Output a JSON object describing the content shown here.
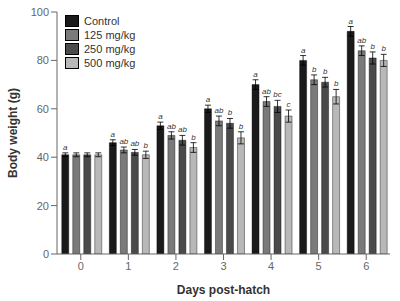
{
  "chart_data": {
    "type": "bar",
    "categories": [
      "0",
      "1",
      "2",
      "3",
      "4",
      "5",
      "6"
    ],
    "xlabel": "Days post-hatch",
    "ylabel": "Body weight (g)",
    "ylim": [
      0,
      100
    ],
    "yticks": [
      0,
      20,
      40,
      60,
      80,
      100
    ],
    "grid": false,
    "legend": "upper left",
    "series": [
      {
        "name": "Control",
        "color": "#1a1a1a",
        "values": [
          41,
          46,
          53,
          60,
          70,
          80,
          92
        ],
        "errors": [
          0.8,
          1.2,
          1.5,
          1.5,
          2.0,
          2.0,
          2.0
        ],
        "labels": [
          "a",
          "a",
          "a",
          "a",
          "a",
          "a",
          "a"
        ]
      },
      {
        "name": "125 mg/kg",
        "color": "#7a7a7a",
        "values": [
          41,
          43,
          49,
          55,
          63,
          72,
          84
        ],
        "errors": [
          0.8,
          1.2,
          1.5,
          2.0,
          2.0,
          2.0,
          2.0
        ],
        "labels": [
          null,
          "ab",
          "ab",
          "ab",
          "ab",
          "b",
          "ab"
        ]
      },
      {
        "name": "250 mg/kg",
        "color": "#4a4a4a",
        "values": [
          41,
          42,
          47,
          54,
          61,
          71,
          81
        ],
        "errors": [
          0.8,
          1.2,
          2.0,
          2.0,
          2.5,
          2.0,
          2.5
        ],
        "labels": [
          null,
          "ab",
          "ab",
          "b",
          "bc",
          "b",
          "b"
        ]
      },
      {
        "name": "500 mg/kg",
        "color": "#b8b8b8",
        "values": [
          41,
          41,
          44,
          48,
          57,
          65,
          80
        ],
        "errors": [
          0.8,
          1.5,
          2.0,
          2.5,
          2.5,
          3.0,
          2.5
        ],
        "labels": [
          null,
          "b",
          "b",
          "b",
          "c",
          "b",
          "b"
        ]
      }
    ]
  }
}
